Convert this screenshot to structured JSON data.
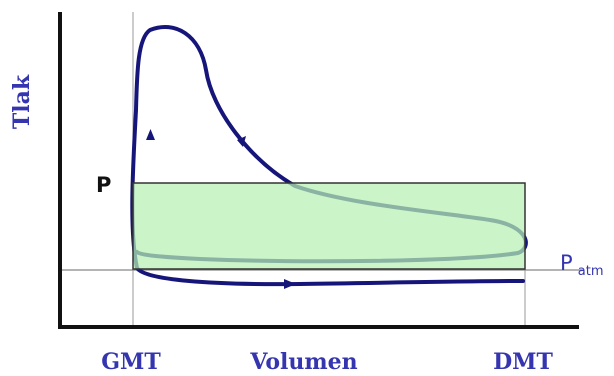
{
  "labels": {
    "y_axis": "Tlak",
    "pressure": "P",
    "p_atm_base": "P",
    "p_atm_sub": "atm",
    "tdc": "GMT",
    "volume": "Volumen",
    "bdc": "DMT"
  },
  "colors": {
    "cycle_curve": "#16167a",
    "label_blue": "#3535b0",
    "rectangle_fill": "#b7f0b3",
    "rectangle_stroke": "#333333",
    "axis": "#111111",
    "guide_line": "#888888"
  }
}
